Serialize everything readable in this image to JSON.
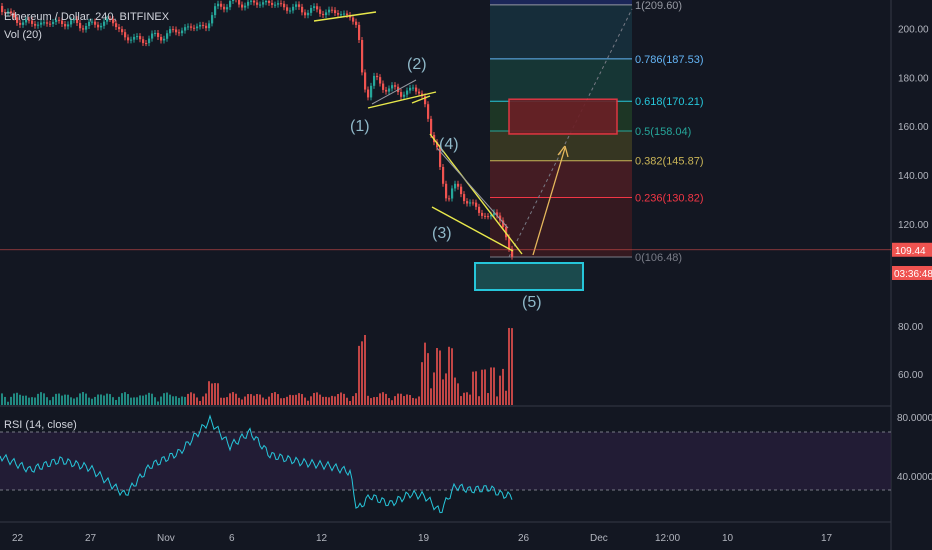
{
  "header": {
    "symbol": "Ethereum / Dollar, 240, BITFINEX",
    "volume": "Vol (20)"
  },
  "rsi_label": "RSI (14, close)",
  "chart_data": {
    "type": "candlestick",
    "price_axis": {
      "ticks": [
        120,
        140,
        160,
        180,
        200
      ],
      "current_price": "109.44",
      "countdown": "03:36:48"
    },
    "volume_axis": {
      "ticks": [
        "60.00",
        "80.00"
      ]
    },
    "rsi_axis": {
      "ticks": [
        "40.0000",
        "80.0000"
      ]
    },
    "x_ticks": [
      "22",
      "27",
      "Nov",
      "6",
      "12",
      "19",
      "26",
      "Dec",
      "12:00",
      "10",
      "17"
    ],
    "fib_levels": [
      {
        "ratio": "0",
        "price": 106.48,
        "label": "0(106.48)",
        "color": "#787b86",
        "fill": "#3a1a20"
      },
      {
        "ratio": "0.236",
        "price": 130.82,
        "label": "0.236(130.82)",
        "color": "#f23645",
        "fill": "#4a1d24"
      },
      {
        "ratio": "0.382",
        "price": 145.87,
        "label": "0.382(145.87)",
        "color": "#c9b457",
        "fill": "#3b3a22"
      },
      {
        "ratio": "0.5",
        "price": 158.04,
        "label": "0.5(158.04)",
        "color": "#26a69a",
        "fill": "#1f3a26"
      },
      {
        "ratio": "0.618",
        "price": 170.21,
        "label": "0.618(170.21)",
        "color": "#26c6da",
        "fill": "#173a37"
      },
      {
        "ratio": "0.786",
        "price": 187.53,
        "label": "0.786(187.53)",
        "color": "#64b5f6",
        "fill": "#17303d"
      },
      {
        "ratio": "1",
        "price": 209.6,
        "label": "1(209.60)",
        "color": "#9598a1",
        "fill": "#2a2e39"
      }
    ],
    "wave_labels": [
      "(1)",
      "(2)",
      "(3)",
      "(4)",
      "(5)"
    ],
    "colors": {
      "up": "#26a69a",
      "down": "#ef5350",
      "rsi": "#26c6da",
      "trendline": "#e8e84b",
      "target": "#e6b85c"
    }
  }
}
